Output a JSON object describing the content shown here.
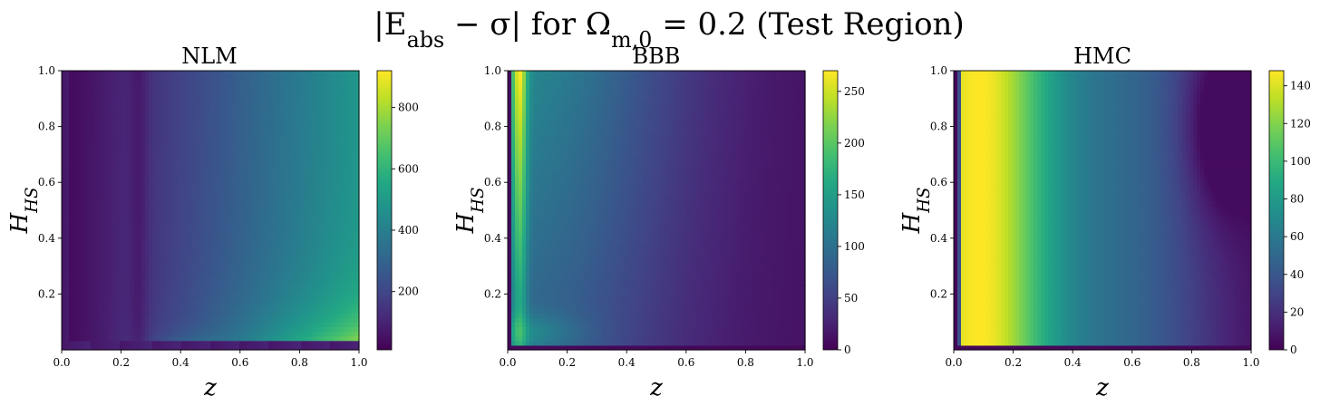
{
  "figure": {
    "title": "|E_abs − σ| for Ω_{m,0} = 0.2 (Test Region)"
  },
  "chart_data": [
    {
      "type": "heatmap",
      "title": "NLM",
      "xlabel": "z",
      "ylabel": "H_HS",
      "xlim": [
        0.0,
        1.0
      ],
      "ylim": [
        0.0,
        1.0
      ],
      "x_ticks": [
        "0.0",
        "0.2",
        "0.4",
        "0.6",
        "0.8",
        "1.0"
      ],
      "y_ticks": [
        "0.2",
        "0.4",
        "0.6",
        "0.8",
        "1.0"
      ],
      "colorbar": {
        "min": 10,
        "max": 920,
        "ticks": [
          200,
          400,
          600,
          800
        ],
        "tick_labels": [
          "200",
          "400",
          "600",
          "800"
        ]
      },
      "colormap": "viridis",
      "grid": false,
      "description_values": {
        "max_region": "high z, low H_HS (~900)",
        "min_region": "z≈0.25 vertical band and low H_HS (~20)"
      }
    },
    {
      "type": "heatmap",
      "title": "BBB",
      "xlabel": "z",
      "ylabel": "H_HS",
      "xlim": [
        0.0,
        1.0
      ],
      "ylim": [
        0.0,
        1.0
      ],
      "x_ticks": [
        "0.0",
        "0.2",
        "0.4",
        "0.6",
        "0.8",
        "1.0"
      ],
      "y_ticks": [
        "0.2",
        "0.4",
        "0.6",
        "0.8",
        "1.0"
      ],
      "colorbar": {
        "min": 0,
        "max": 270,
        "ticks": [
          0,
          50,
          100,
          150,
          200,
          250
        ],
        "tick_labels": [
          "0",
          "50",
          "100",
          "150",
          "200",
          "250"
        ]
      },
      "colormap": "viridis",
      "grid": false,
      "description_values": {
        "max_region": "z≈0.04, high H_HS (~260)",
        "min_region": "high z, low H_HS (~0)"
      }
    },
    {
      "type": "heatmap",
      "title": "HMC",
      "xlabel": "z",
      "ylabel": "H_HS",
      "xlim": [
        0.0,
        1.0
      ],
      "ylim": [
        0.0,
        1.0
      ],
      "x_ticks": [
        "0.0",
        "0.2",
        "0.4",
        "0.6",
        "0.8",
        "1.0"
      ],
      "y_ticks": [
        "0.2",
        "0.4",
        "0.6",
        "0.8",
        "1.0"
      ],
      "colorbar": {
        "min": 0,
        "max": 148,
        "ticks": [
          0,
          20,
          40,
          60,
          80,
          100,
          120,
          140
        ],
        "tick_labels": [
          "0",
          "20",
          "40",
          "60",
          "80",
          "100",
          "120",
          "140"
        ]
      },
      "colormap": "viridis",
      "grid": false,
      "description_values": {
        "max_region": "z≈0.05–0.12 band (~145)",
        "min_region": "z≈0.9, H_HS≈0.8 (~5)"
      }
    }
  ]
}
